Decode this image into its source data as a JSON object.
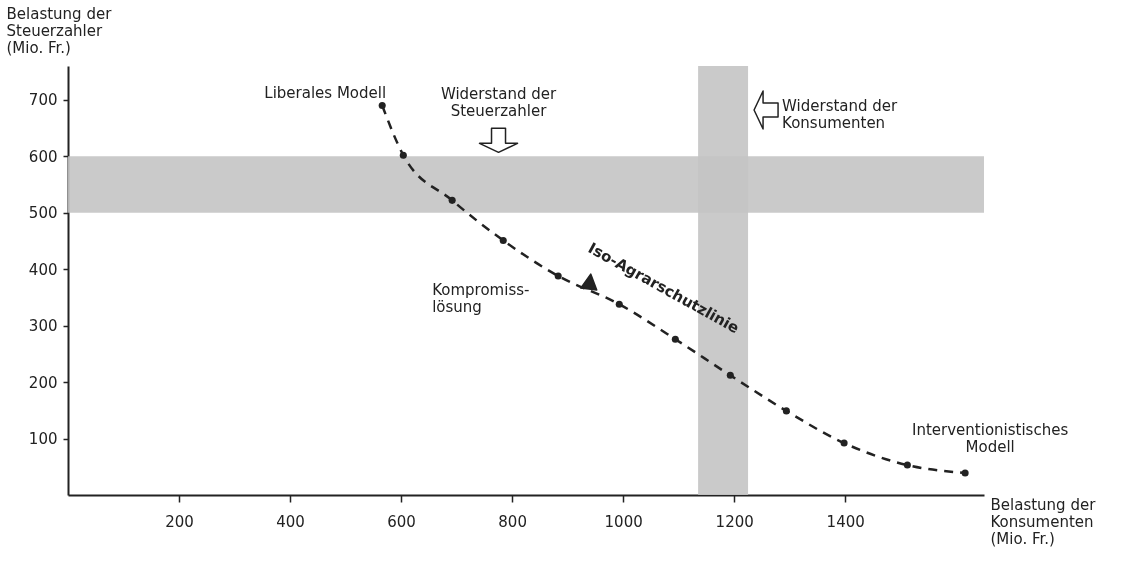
{
  "chart_data": {
    "type": "line",
    "xlabel": "Belastung der\nKonsumenten\n(Mio. Fr.)",
    "ylabel": "Belastung der\nSteuerzahler\n(Mio. Fr.)",
    "x": [
      566,
      604,
      692,
      784,
      883,
      993,
      1094,
      1193,
      1294,
      1398,
      1512,
      1616
    ],
    "series": [
      {
        "color": "#222222",
        "values": [
          690,
          602,
          522,
          451,
          388,
          338,
          276,
          212,
          149,
          92,
          53,
          39
        ]
      }
    ],
    "xlim": [
      0,
      1650
    ],
    "ylim": [
      0,
      760
    ],
    "xticks": [
      200,
      400,
      600,
      800,
      1000,
      1200,
      1400
    ],
    "yticks": [
      100,
      200,
      300,
      400,
      500,
      600,
      700
    ],
    "bands": [
      {
        "axis": "y",
        "from": 500,
        "to": 600,
        "label": "Widerstand der\nSteuerzahler",
        "color": "#c4c4c4"
      },
      {
        "axis": "x",
        "from": 1135,
        "to": 1225,
        "label": "Widerstand der\nKonsumenten",
        "color": "#c4c4c4"
      }
    ],
    "annotations": [
      {
        "text": "Liberales Modell",
        "x": 566,
        "y": 690
      },
      {
        "text": "Iso-Agrarschutzlinie",
        "x": 1094,
        "y": 276
      },
      {
        "text": "Kompromiss-\nlösung",
        "x": 883,
        "y": 388
      },
      {
        "text": "Interventionistisches\nModell",
        "x": 1616,
        "y": 39
      }
    ],
    "grid": false,
    "marker": "circle",
    "line_style": "dashed"
  }
}
